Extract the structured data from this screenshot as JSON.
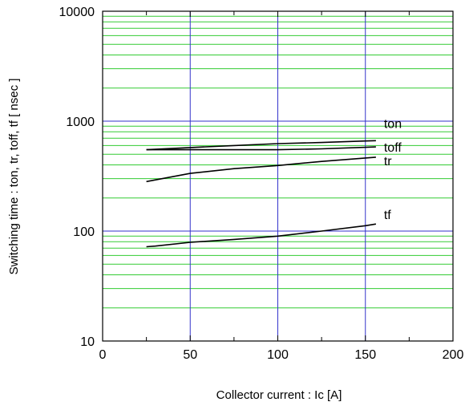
{
  "chart_data": {
    "type": "line",
    "xlabel": "Collector current : Ic [A]",
    "ylabel": "Switching time  :  ton, tr, toff, tf  [ nsec ]",
    "xlim": [
      0,
      200
    ],
    "ylim": [
      10,
      10000
    ],
    "y_scale": "log",
    "grid": true,
    "legend": "labels at line ends",
    "x_ticks": [
      "0",
      "50",
      "100",
      "150",
      "200"
    ],
    "y_ticks": [
      "10",
      "100",
      "1000",
      "10000"
    ],
    "x_tick_values": [
      0,
      50,
      100,
      150,
      200
    ],
    "y_tick_values": [
      10,
      100,
      1000,
      10000
    ],
    "colors": {
      "major_grid": "#3333cc",
      "minor_grid": "#33cc33",
      "series": "#000000",
      "frame": "#000000"
    },
    "series": [
      {
        "name": "ton",
        "x": [
          25,
          50,
          75,
          100,
          125,
          150,
          156
        ],
        "values": [
          550,
          575,
          600,
          625,
          640,
          660,
          665
        ]
      },
      {
        "name": "toff",
        "x": [
          25,
          50,
          75,
          100,
          125,
          150,
          156
        ],
        "values": [
          550,
          550,
          550,
          550,
          560,
          578,
          583
        ]
      },
      {
        "name": "tr",
        "x": [
          25,
          50,
          75,
          100,
          125,
          150,
          156
        ],
        "values": [
          282,
          335,
          370,
          395,
          430,
          462,
          470
        ]
      },
      {
        "name": "tf",
        "x": [
          25,
          30,
          50,
          75,
          100,
          125,
          150,
          156
        ],
        "values": [
          72,
          73,
          79,
          84,
          90,
          100,
          112,
          116
        ]
      }
    ]
  }
}
